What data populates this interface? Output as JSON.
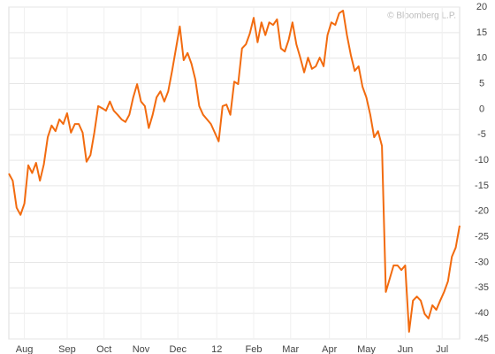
{
  "chart_data": {
    "type": "line",
    "watermark": "© Bloomberg L.P.",
    "series": [
      {
        "color": "#f26b0f",
        "values": [
          -12.6,
          -14,
          -19.3,
          -20.7,
          -18.5,
          -11,
          -12.5,
          -10.5,
          -14,
          -10.8,
          -5.5,
          -3.2,
          -4.3,
          -2,
          -2.9,
          -0.8,
          -4.6,
          -2.9,
          -2.9,
          -4.6,
          -10.3,
          -9,
          -4.6,
          0.6,
          0.2,
          -0.3,
          1.5,
          -0.3,
          -1.1,
          -2,
          -2.5,
          -1.1,
          2.3,
          4.9,
          1.5,
          0.6,
          -3.7,
          -1.1,
          2.3,
          3.5,
          1.5,
          3.5,
          7.5,
          11.9,
          16.2,
          9.6,
          11,
          8.9,
          5.8,
          0.6,
          -1.1,
          -2,
          -2.9,
          -4.6,
          -6.3,
          0.6,
          0.9,
          -1.1,
          5.4,
          4.9,
          11.9,
          12.7,
          14.8,
          17.9,
          13.1,
          17,
          14.5,
          17,
          16.5,
          17.6,
          11.9,
          11.3,
          13.6,
          17,
          12.7,
          10.1,
          7.2,
          10.1,
          7.9,
          8.4,
          10.1,
          8.4,
          14.5,
          17,
          16.5,
          18.8,
          19.3,
          14.5,
          10.6,
          7.5,
          8.4,
          4.4,
          2.3,
          -1.1,
          -5.5,
          -4.3,
          -7.2,
          -35.8,
          -33.2,
          -30.6,
          -30.6,
          -31.5,
          -30.6,
          -43.6,
          -37.5,
          -36.7,
          -37.5,
          -40.1,
          -41,
          -38.4,
          -39.3,
          -37.5,
          -35.8,
          -33.7,
          -28.9,
          -27.1,
          -22.8
        ]
      }
    ],
    "xlim": [
      0,
      116
    ],
    "xticks": [
      {
        "value": 4,
        "label": "Aug"
      },
      {
        "value": 15,
        "label": "Sep"
      },
      {
        "value": 24.5,
        "label": "Oct"
      },
      {
        "value": 34,
        "label": "Nov"
      },
      {
        "value": 43.5,
        "label": "Dec"
      },
      {
        "value": 53.5,
        "label": "12"
      },
      {
        "value": 63,
        "label": "Feb"
      },
      {
        "value": 72.5,
        "label": "Mar"
      },
      {
        "value": 82.5,
        "label": "Apr"
      },
      {
        "value": 92,
        "label": "May"
      },
      {
        "value": 102,
        "label": "Jun"
      },
      {
        "value": 111.5,
        "label": "Jul"
      }
    ],
    "ylim": [
      -45,
      20
    ],
    "yticks": [
      20,
      15,
      10,
      5,
      0,
      -5,
      -10,
      -15,
      -20,
      -25,
      -30,
      -35,
      -40,
      -45
    ],
    "grid": true
  }
}
